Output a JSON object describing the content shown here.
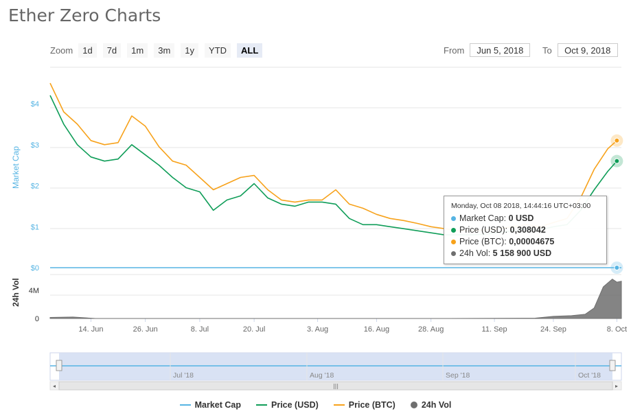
{
  "title": "Ether Zero Charts",
  "zoom": {
    "label": "Zoom",
    "buttons": [
      "1d",
      "7d",
      "1m",
      "3m",
      "1y",
      "YTD",
      "ALL"
    ],
    "active": "ALL"
  },
  "range": {
    "from_label": "From",
    "from_value": "Jun 5, 2018",
    "to_label": "To",
    "to_value": "Oct 9, 2018"
  },
  "tooltip": {
    "header": "Monday, Oct 08 2018, 14:44:16 UTC+03:00",
    "rows": [
      {
        "label": "Market Cap:",
        "value": "0 USD",
        "color": "#56b4e3"
      },
      {
        "label": "Price (USD):",
        "value": "0,308042",
        "color": "#0f9d58"
      },
      {
        "label": "Price (BTC):",
        "value": "0,00004675",
        "color": "#f7a21b"
      },
      {
        "label": "24h Vol:",
        "value": "5 158 900 USD",
        "color": "#6f6f6f"
      }
    ]
  },
  "legend": [
    {
      "name": "Market Cap",
      "color": "#56b4e3",
      "kind": "line"
    },
    {
      "name": "Price (USD)",
      "color": "#0f9d58",
      "kind": "line"
    },
    {
      "name": "Price (BTC)",
      "color": "#f7a21b",
      "kind": "line"
    },
    {
      "name": "24h Vol",
      "color": "#6f6f6f",
      "kind": "dot"
    }
  ],
  "navigator": {
    "labels": [
      "Jul '18",
      "Aug '18",
      "Sep '18",
      "Oct '18"
    ],
    "scroll_grip": "|||"
  },
  "chart_data": {
    "type": "line",
    "x_axis": {
      "ticks": [
        "14. Jun",
        "26. Jun",
        "8. Jul",
        "20. Jul",
        "3. Aug",
        "16. Aug",
        "28. Aug",
        "11. Sep",
        "24. Sep",
        "8. Oct"
      ],
      "range": [
        "2018-06-05",
        "2018-10-09"
      ]
    },
    "y_axis_market_cap": {
      "label": "Market Cap",
      "ticks": [
        "$0",
        "$1",
        "$2",
        "$3",
        "$4"
      ],
      "ylim": [
        0,
        4.5
      ],
      "color": "#56b4e3"
    },
    "y_axis_volume": {
      "label": "24h Vol",
      "ticks": [
        "0",
        "4M"
      ],
      "ylim": [
        0,
        7000000
      ]
    },
    "series": [
      {
        "name": "Price (BTC)",
        "color": "#f7a21b",
        "note_scale": "plotted against price axis",
        "x": [
          "2018-06-05",
          "2018-06-08",
          "2018-06-11",
          "2018-06-14",
          "2018-06-17",
          "2018-06-20",
          "2018-06-23",
          "2018-06-26",
          "2018-06-29",
          "2018-07-02",
          "2018-07-05",
          "2018-07-08",
          "2018-07-11",
          "2018-07-14",
          "2018-07-17",
          "2018-07-20",
          "2018-07-23",
          "2018-07-26",
          "2018-07-29",
          "2018-08-01",
          "2018-08-04",
          "2018-08-07",
          "2018-08-10",
          "2018-08-13",
          "2018-08-16",
          "2018-08-19",
          "2018-08-22",
          "2018-08-25",
          "2018-08-28",
          "2018-08-31",
          "2018-09-03",
          "2018-09-06",
          "2018-09-09",
          "2018-09-12",
          "2018-09-15",
          "2018-09-18",
          "2018-09-21",
          "2018-09-24",
          "2018-09-27",
          "2018-09-30",
          "2018-10-03",
          "2018-10-06",
          "2018-10-08"
        ],
        "y": [
          4.5,
          3.8,
          3.5,
          3.1,
          3.0,
          3.05,
          3.7,
          3.45,
          2.95,
          2.6,
          2.5,
          2.2,
          1.9,
          2.05,
          2.2,
          2.25,
          1.9,
          1.65,
          1.6,
          1.65,
          1.65,
          1.9,
          1.55,
          1.45,
          1.3,
          1.2,
          1.15,
          1.08,
          1.0,
          0.95,
          0.9,
          0.9,
          0.92,
          0.95,
          1.0,
          1.05,
          1.0,
          1.1,
          1.2,
          1.7,
          2.4,
          2.9,
          3.1
        ]
      },
      {
        "name": "Price (USD)",
        "color": "#0f9d58",
        "x": [
          "2018-06-05",
          "2018-06-08",
          "2018-06-11",
          "2018-06-14",
          "2018-06-17",
          "2018-06-20",
          "2018-06-23",
          "2018-06-26",
          "2018-06-29",
          "2018-07-02",
          "2018-07-05",
          "2018-07-08",
          "2018-07-11",
          "2018-07-14",
          "2018-07-17",
          "2018-07-20",
          "2018-07-23",
          "2018-07-26",
          "2018-07-29",
          "2018-08-01",
          "2018-08-04",
          "2018-08-07",
          "2018-08-10",
          "2018-08-13",
          "2018-08-16",
          "2018-08-19",
          "2018-08-22",
          "2018-08-25",
          "2018-08-28",
          "2018-08-31",
          "2018-09-03",
          "2018-09-06",
          "2018-09-09",
          "2018-09-12",
          "2018-09-15",
          "2018-09-18",
          "2018-09-21",
          "2018-09-24",
          "2018-09-27",
          "2018-09-30",
          "2018-10-03",
          "2018-10-06",
          "2018-10-08"
        ],
        "y": [
          4.2,
          3.5,
          3.0,
          2.7,
          2.6,
          2.65,
          3.0,
          2.75,
          2.5,
          2.2,
          1.95,
          1.85,
          1.4,
          1.65,
          1.75,
          2.05,
          1.7,
          1.55,
          1.5,
          1.6,
          1.6,
          1.55,
          1.2,
          1.05,
          1.05,
          1.0,
          0.95,
          0.9,
          0.85,
          0.8,
          0.8,
          0.8,
          0.82,
          0.85,
          0.9,
          0.95,
          0.92,
          1.0,
          1.05,
          1.4,
          1.9,
          2.35,
          2.6
        ]
      },
      {
        "name": "Market Cap",
        "color": "#56b4e3",
        "x": [
          "2018-06-05",
          "2018-10-09"
        ],
        "y": [
          0,
          0
        ]
      },
      {
        "name": "24h Vol",
        "color": "#6f6f6f",
        "type": "area",
        "x": [
          "2018-06-05",
          "2018-06-10",
          "2018-06-15",
          "2018-07-01",
          "2018-08-01",
          "2018-09-01",
          "2018-09-20",
          "2018-09-24",
          "2018-09-28",
          "2018-10-01",
          "2018-10-03",
          "2018-10-05",
          "2018-10-07",
          "2018-10-08",
          "2018-10-09"
        ],
        "y": [
          150000,
          200000,
          0,
          0,
          0,
          0,
          50000,
          300000,
          400000,
          600000,
          1500000,
          4500000,
          5600000,
          5158900,
          5300000
        ]
      }
    ]
  }
}
